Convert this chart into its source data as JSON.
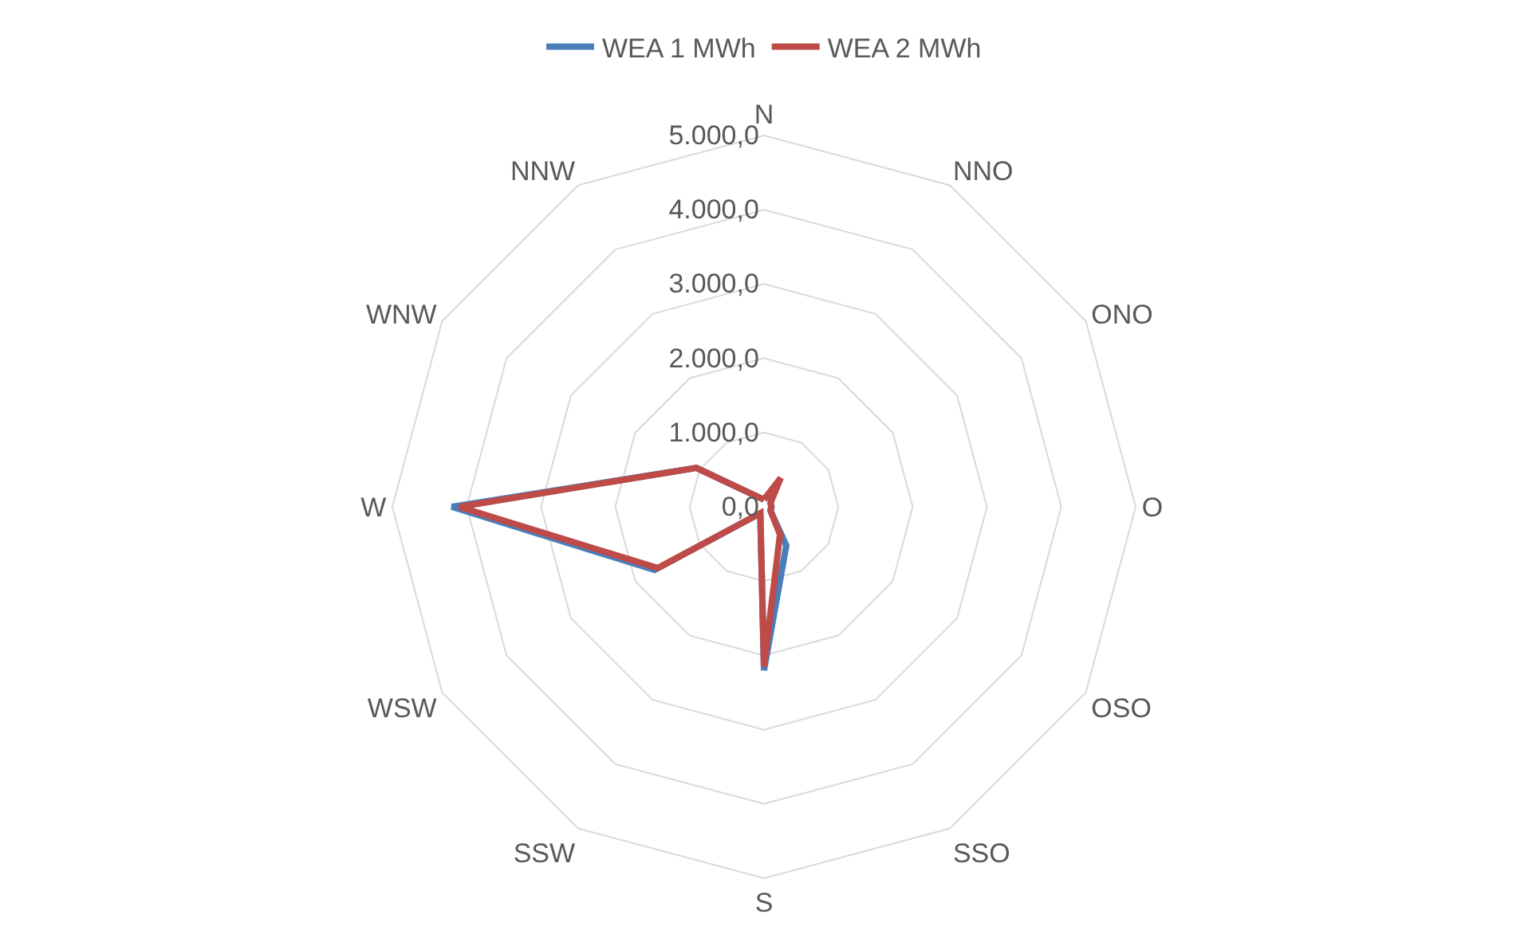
{
  "chart_data": {
    "type": "radar",
    "categories": [
      "N",
      "NNO",
      "ONO",
      "O",
      "OSO",
      "SSO",
      "S",
      "SSW",
      "WSW",
      "W",
      "WNW",
      "NNW"
    ],
    "series": [
      {
        "name": "WEA 1 MWh",
        "color": "#4a7ebb",
        "values": [
          100,
          300,
          100,
          100,
          100,
          600,
          2200,
          100,
          1700,
          4200,
          1050,
          150
        ]
      },
      {
        "name": "WEA 2 MWh",
        "color": "#be4b48",
        "values": [
          100,
          450,
          100,
          100,
          100,
          430,
          2150,
          100,
          1650,
          4100,
          1050,
          150
        ]
      }
    ],
    "ylim": [
      0,
      5000
    ],
    "yticks": [
      {
        "value": 0,
        "label": "0,0"
      },
      {
        "value": 1000,
        "label": "1.000,0"
      },
      {
        "value": 2000,
        "label": "2.000,0"
      },
      {
        "value": 3000,
        "label": "3.000,0"
      },
      {
        "value": 4000,
        "label": "4.000,0"
      },
      {
        "value": 5000,
        "label": "5.000,0"
      }
    ],
    "grid": true,
    "legend": "top",
    "marker": "none",
    "line_style": "solid"
  }
}
